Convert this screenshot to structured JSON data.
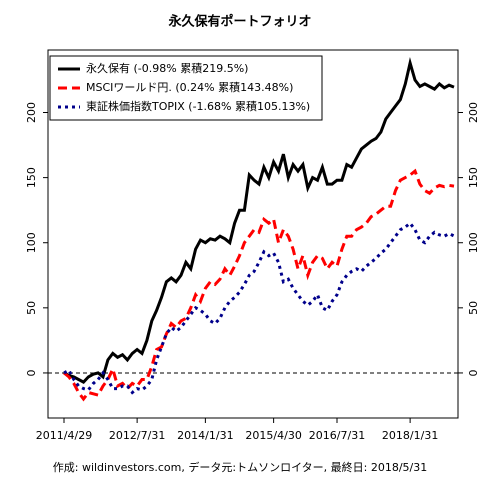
{
  "chart_data": {
    "type": "line",
    "title": "永久保有ポートフォリオ",
    "footer": "作成: wildinvestors.com, データ元:トムソンロイター, 最終日: 2018/5/31",
    "categories": [
      "2011/4/29",
      null,
      null,
      null,
      null,
      null,
      null,
      null,
      null,
      null,
      null,
      null,
      null,
      null,
      null,
      "2012/7/31",
      null,
      null,
      null,
      null,
      null,
      null,
      null,
      null,
      null,
      null,
      null,
      null,
      null,
      "2014/1/31",
      null,
      null,
      null,
      null,
      null,
      null,
      null,
      null,
      null,
      null,
      null,
      null,
      null,
      "2015/4/30",
      null,
      null,
      null,
      null,
      null,
      null,
      null,
      null,
      null,
      null,
      null,
      null,
      "2016/7/31",
      null,
      null,
      null,
      null,
      null,
      null,
      null,
      null,
      null,
      null,
      null,
      null,
      null,
      null,
      "2018/1/31",
      null,
      null,
      null,
      null,
      null,
      null,
      null,
      null,
      null
    ],
    "series": [
      {
        "name": "永久保有 (-0.98% 累積219.5%)",
        "color": "#000000",
        "linestyle": "solid",
        "values": [
          0,
          -2,
          -3,
          -5,
          -7,
          -3,
          -1,
          0,
          -3,
          10,
          15,
          12,
          14,
          10,
          15,
          18,
          15,
          25,
          40,
          48,
          58,
          70,
          73,
          70,
          75,
          85,
          80,
          95,
          102,
          100,
          103,
          102,
          105,
          103,
          100,
          115,
          125,
          125,
          152,
          148,
          145,
          158,
          150,
          162,
          155,
          168,
          150,
          160,
          155,
          160,
          142,
          150,
          148,
          158,
          145,
          145,
          148,
          148,
          160,
          158,
          165,
          172,
          175,
          178,
          180,
          185,
          195,
          200,
          205,
          210,
          222,
          238,
          225,
          220,
          222,
          220,
          218,
          222,
          219,
          221,
          219.5
        ]
      },
      {
        "name": "MSCIワールド円. (0.24% 累積143.48%)",
        "color": "#ff0000",
        "linestyle": "dashed",
        "values": [
          0,
          -3,
          -8,
          -15,
          -20,
          -15,
          -16,
          -17,
          -10,
          -5,
          3,
          -10,
          -8,
          -12,
          -8,
          -10,
          -5,
          -5,
          5,
          18,
          20,
          30,
          38,
          35,
          40,
          42,
          50,
          60,
          55,
          65,
          70,
          68,
          72,
          80,
          75,
          82,
          90,
          100,
          105,
          110,
          108,
          118,
          115,
          118,
          100,
          110,
          105,
          95,
          80,
          90,
          75,
          85,
          90,
          88,
          80,
          85,
          82,
          95,
          105,
          105,
          110,
          112,
          115,
          120,
          122,
          125,
          128,
          128,
          140,
          148,
          150,
          152,
          155,
          145,
          140,
          138,
          142,
          144,
          143,
          144,
          143.48
        ]
      },
      {
        "name": "東証株価指数TOPIX (-1.68% 累積105.13%)",
        "color": "#00008b",
        "linestyle": "dotted",
        "values": [
          0,
          2,
          -5,
          -10,
          -12,
          -13,
          -8,
          -5,
          0,
          -5,
          -12,
          -12,
          -10,
          -10,
          -15,
          -12,
          -13,
          -10,
          -5,
          10,
          20,
          30,
          35,
          32,
          35,
          40,
          45,
          50,
          48,
          45,
          40,
          38,
          42,
          50,
          55,
          58,
          62,
          68,
          75,
          78,
          85,
          93,
          90,
          92,
          85,
          70,
          72,
          65,
          60,
          55,
          52,
          55,
          60,
          50,
          48,
          55,
          60,
          70,
          75,
          78,
          80,
          78,
          82,
          85,
          88,
          92,
          95,
          100,
          105,
          110,
          112,
          115,
          110,
          102,
          100,
          105,
          108,
          106,
          105,
          107,
          105.13
        ]
      }
    ],
    "ylim": [
      -34.6,
      248
    ],
    "yticks": [
      0,
      50,
      100,
      150,
      200
    ],
    "zero_line": true,
    "legend": "top-left"
  }
}
